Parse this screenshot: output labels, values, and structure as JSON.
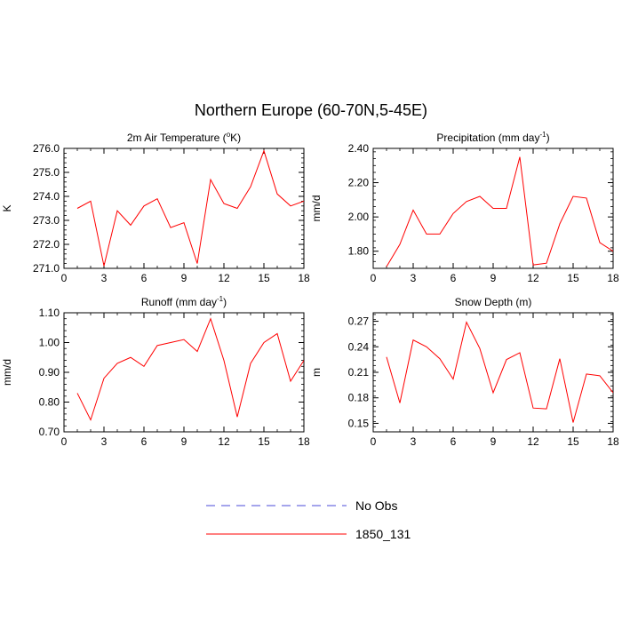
{
  "title": "Northern Europe (60-70N,5-45E)",
  "legend": [
    {
      "label": "No Obs",
      "color": "#4b4bd8",
      "style": "dashed"
    },
    {
      "label": "1850_131",
      "color": "#ff0000",
      "style": "solid"
    }
  ],
  "chart_data": [
    {
      "type": "line",
      "title": "2m Air Temperature (°K)",
      "title_parts": {
        "pre": "2m Air Temperature (",
        "sup": "o",
        "post": "K)"
      },
      "ylabel": "K",
      "xlim": [
        0,
        18
      ],
      "ylim": [
        271.0,
        276.0
      ],
      "xticks": [
        0,
        3,
        6,
        9,
        12,
        15,
        18
      ],
      "yticks": [
        271.0,
        272.0,
        273.0,
        274.0,
        275.0,
        276.0
      ],
      "ytick_labels": [
        "271.0",
        "272.0",
        "273.0",
        "274.0",
        "275.0",
        "276.0"
      ],
      "series": [
        {
          "name": "1850_131",
          "color": "#ff0000",
          "x": [
            1,
            2,
            3,
            4,
            5,
            6,
            7,
            8,
            9,
            10,
            11,
            12,
            13,
            14,
            15,
            16,
            17,
            18
          ],
          "values": [
            273.5,
            273.8,
            271.1,
            273.4,
            272.8,
            273.6,
            273.9,
            272.7,
            272.9,
            271.2,
            274.7,
            273.7,
            273.5,
            274.4,
            275.9,
            274.1,
            273.6,
            273.8
          ]
        }
      ]
    },
    {
      "type": "line",
      "title": "Precipitation (mm day-1)",
      "title_parts": {
        "pre": "Precipitation (mm day",
        "sup": "-1",
        "post": ")"
      },
      "ylabel": "mm/d",
      "xlim": [
        0,
        18
      ],
      "ylim": [
        1.7,
        2.4
      ],
      "xticks": [
        0,
        3,
        6,
        9,
        12,
        15,
        18
      ],
      "yticks": [
        1.8,
        2.0,
        2.2,
        2.4
      ],
      "ytick_labels": [
        "1.80",
        "2.00",
        "2.20",
        "2.40"
      ],
      "series": [
        {
          "name": "1850_131",
          "color": "#ff0000",
          "x": [
            1,
            2,
            3,
            4,
            5,
            6,
            7,
            8,
            9,
            10,
            11,
            12,
            13,
            14,
            15,
            16,
            17,
            18
          ],
          "values": [
            1.71,
            1.84,
            2.04,
            1.9,
            1.9,
            2.02,
            2.09,
            2.12,
            2.05,
            2.05,
            2.35,
            1.72,
            1.73,
            1.96,
            2.12,
            2.11,
            1.85,
            1.8
          ]
        }
      ]
    },
    {
      "type": "line",
      "title": "Runoff (mm day-1)",
      "title_parts": {
        "pre": "Runoff (mm day",
        "sup": "-1",
        "post": ")"
      },
      "ylabel": "mm/d",
      "xlim": [
        0,
        18
      ],
      "ylim": [
        0.7,
        1.1
      ],
      "xticks": [
        0,
        3,
        6,
        9,
        12,
        15,
        18
      ],
      "yticks": [
        0.7,
        0.8,
        0.9,
        1.0,
        1.1
      ],
      "ytick_labels": [
        "0.70",
        "0.80",
        "0.90",
        "1.00",
        "1.10"
      ],
      "series": [
        {
          "name": "1850_131",
          "color": "#ff0000",
          "x": [
            1,
            2,
            3,
            4,
            5,
            6,
            7,
            8,
            9,
            10,
            11,
            12,
            13,
            14,
            15,
            16,
            17,
            18
          ],
          "values": [
            0.83,
            0.74,
            0.88,
            0.93,
            0.95,
            0.92,
            0.99,
            1.0,
            1.01,
            0.97,
            1.08,
            0.94,
            0.75,
            0.93,
            1.0,
            1.03,
            0.87,
            0.94
          ]
        }
      ]
    },
    {
      "type": "line",
      "title": "Snow Depth (m)",
      "title_parts": {
        "pre": "Snow Depth (m)",
        "sup": "",
        "post": ""
      },
      "ylabel": "m",
      "xlim": [
        0,
        18
      ],
      "ylim": [
        0.14,
        0.28
      ],
      "xticks": [
        0,
        3,
        6,
        9,
        12,
        15,
        18
      ],
      "yticks": [
        0.15,
        0.18,
        0.21,
        0.24,
        0.27
      ],
      "ytick_labels": [
        "0.15",
        "0.18",
        "0.21",
        "0.24",
        "0.27"
      ],
      "series": [
        {
          "name": "1850_131",
          "color": "#ff0000",
          "x": [
            1,
            2,
            3,
            4,
            5,
            6,
            7,
            8,
            9,
            10,
            11,
            12,
            13,
            14,
            15,
            16,
            17,
            18
          ],
          "values": [
            0.228,
            0.174,
            0.248,
            0.24,
            0.226,
            0.202,
            0.269,
            0.238,
            0.186,
            0.225,
            0.233,
            0.168,
            0.167,
            0.226,
            0.151,
            0.208,
            0.206,
            0.186
          ]
        }
      ]
    }
  ]
}
